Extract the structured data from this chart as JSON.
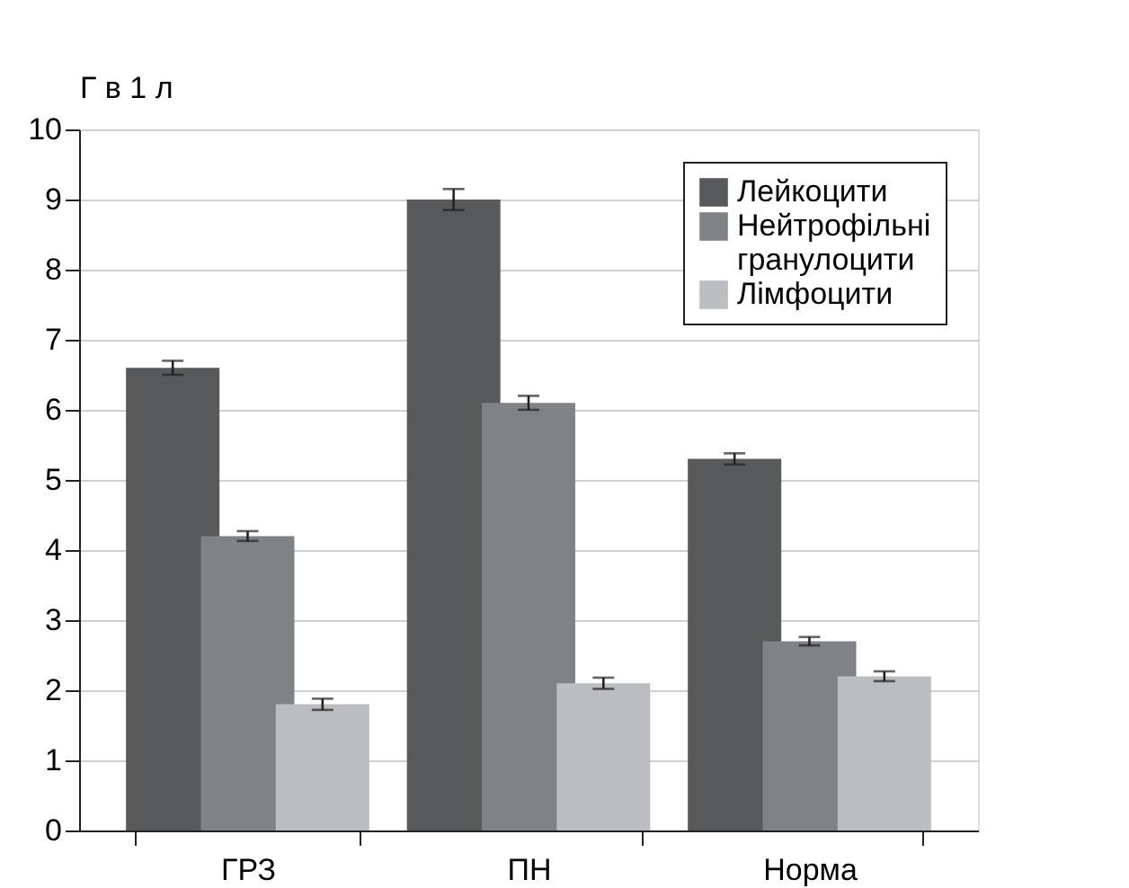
{
  "chart_data": {
    "type": "bar",
    "ylabel": "Г в 1 л",
    "categories": [
      "ГРЗ",
      "ПН",
      "Норма"
    ],
    "series": [
      {
        "name": "Лейкоцити",
        "color": "#58595b",
        "values": [
          6.6,
          9.0,
          5.3
        ],
        "errors": [
          0.1,
          0.15,
          0.08
        ]
      },
      {
        "name": "Нейтрофільні гранулоцити",
        "color": "#818285",
        "values": [
          4.2,
          6.1,
          2.7
        ],
        "errors": [
          0.07,
          0.1,
          0.06
        ]
      },
      {
        "name": "Лімфоцити",
        "color": "#bcbdc0",
        "values": [
          1.8,
          2.1,
          2.2
        ],
        "errors": [
          0.08,
          0.08,
          0.07
        ]
      }
    ],
    "ylim": [
      0,
      10
    ],
    "yticks": [
      0,
      1,
      2,
      3,
      4,
      5,
      6,
      7,
      8,
      9,
      10
    ],
    "grid": "y",
    "legend": "top right"
  }
}
